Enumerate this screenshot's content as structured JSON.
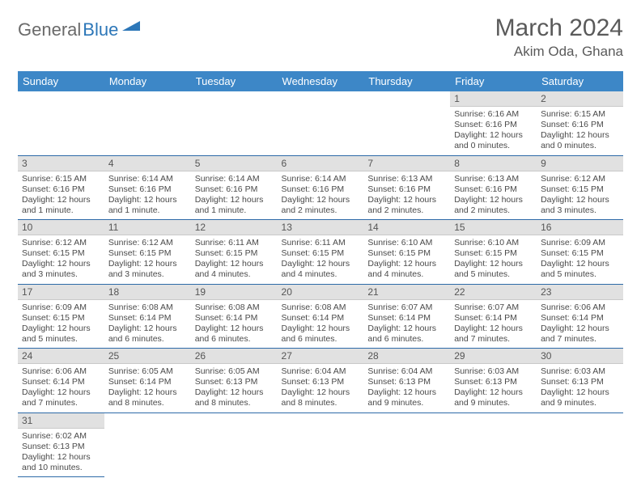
{
  "logo": {
    "text1": "General",
    "text2": "Blue"
  },
  "title": "March 2024",
  "location": "Akim Oda, Ghana",
  "colors": {
    "header_bg": "#3d87c7",
    "header_text": "#ffffff",
    "daynum_bg": "#e1e1e1",
    "cell_border": "#2d6aa8",
    "body_text": "#4a4a4a",
    "title_text": "#5a5a5a",
    "logo_gray": "#6a6a6a",
    "logo_blue": "#2d77b8"
  },
  "fonts": {
    "title_size": 30,
    "location_size": 17,
    "dow_size": 13,
    "daynum_size": 12,
    "content_size": 10.5
  },
  "dow": [
    "Sunday",
    "Monday",
    "Tuesday",
    "Wednesday",
    "Thursday",
    "Friday",
    "Saturday"
  ],
  "weeks": [
    [
      null,
      null,
      null,
      null,
      null,
      {
        "d": "1",
        "sr": "6:16 AM",
        "ss": "6:16 PM",
        "dl": "12 hours and 0 minutes."
      },
      {
        "d": "2",
        "sr": "6:15 AM",
        "ss": "6:16 PM",
        "dl": "12 hours and 0 minutes."
      }
    ],
    [
      {
        "d": "3",
        "sr": "6:15 AM",
        "ss": "6:16 PM",
        "dl": "12 hours and 1 minute."
      },
      {
        "d": "4",
        "sr": "6:14 AM",
        "ss": "6:16 PM",
        "dl": "12 hours and 1 minute."
      },
      {
        "d": "5",
        "sr": "6:14 AM",
        "ss": "6:16 PM",
        "dl": "12 hours and 1 minute."
      },
      {
        "d": "6",
        "sr": "6:14 AM",
        "ss": "6:16 PM",
        "dl": "12 hours and 2 minutes."
      },
      {
        "d": "7",
        "sr": "6:13 AM",
        "ss": "6:16 PM",
        "dl": "12 hours and 2 minutes."
      },
      {
        "d": "8",
        "sr": "6:13 AM",
        "ss": "6:16 PM",
        "dl": "12 hours and 2 minutes."
      },
      {
        "d": "9",
        "sr": "6:12 AM",
        "ss": "6:15 PM",
        "dl": "12 hours and 3 minutes."
      }
    ],
    [
      {
        "d": "10",
        "sr": "6:12 AM",
        "ss": "6:15 PM",
        "dl": "12 hours and 3 minutes."
      },
      {
        "d": "11",
        "sr": "6:12 AM",
        "ss": "6:15 PM",
        "dl": "12 hours and 3 minutes."
      },
      {
        "d": "12",
        "sr": "6:11 AM",
        "ss": "6:15 PM",
        "dl": "12 hours and 4 minutes."
      },
      {
        "d": "13",
        "sr": "6:11 AM",
        "ss": "6:15 PM",
        "dl": "12 hours and 4 minutes."
      },
      {
        "d": "14",
        "sr": "6:10 AM",
        "ss": "6:15 PM",
        "dl": "12 hours and 4 minutes."
      },
      {
        "d": "15",
        "sr": "6:10 AM",
        "ss": "6:15 PM",
        "dl": "12 hours and 5 minutes."
      },
      {
        "d": "16",
        "sr": "6:09 AM",
        "ss": "6:15 PM",
        "dl": "12 hours and 5 minutes."
      }
    ],
    [
      {
        "d": "17",
        "sr": "6:09 AM",
        "ss": "6:15 PM",
        "dl": "12 hours and 5 minutes."
      },
      {
        "d": "18",
        "sr": "6:08 AM",
        "ss": "6:14 PM",
        "dl": "12 hours and 6 minutes."
      },
      {
        "d": "19",
        "sr": "6:08 AM",
        "ss": "6:14 PM",
        "dl": "12 hours and 6 minutes."
      },
      {
        "d": "20",
        "sr": "6:08 AM",
        "ss": "6:14 PM",
        "dl": "12 hours and 6 minutes."
      },
      {
        "d": "21",
        "sr": "6:07 AM",
        "ss": "6:14 PM",
        "dl": "12 hours and 6 minutes."
      },
      {
        "d": "22",
        "sr": "6:07 AM",
        "ss": "6:14 PM",
        "dl": "12 hours and 7 minutes."
      },
      {
        "d": "23",
        "sr": "6:06 AM",
        "ss": "6:14 PM",
        "dl": "12 hours and 7 minutes."
      }
    ],
    [
      {
        "d": "24",
        "sr": "6:06 AM",
        "ss": "6:14 PM",
        "dl": "12 hours and 7 minutes."
      },
      {
        "d": "25",
        "sr": "6:05 AM",
        "ss": "6:14 PM",
        "dl": "12 hours and 8 minutes."
      },
      {
        "d": "26",
        "sr": "6:05 AM",
        "ss": "6:13 PM",
        "dl": "12 hours and 8 minutes."
      },
      {
        "d": "27",
        "sr": "6:04 AM",
        "ss": "6:13 PM",
        "dl": "12 hours and 8 minutes."
      },
      {
        "d": "28",
        "sr": "6:04 AM",
        "ss": "6:13 PM",
        "dl": "12 hours and 9 minutes."
      },
      {
        "d": "29",
        "sr": "6:03 AM",
        "ss": "6:13 PM",
        "dl": "12 hours and 9 minutes."
      },
      {
        "d": "30",
        "sr": "6:03 AM",
        "ss": "6:13 PM",
        "dl": "12 hours and 9 minutes."
      }
    ],
    [
      {
        "d": "31",
        "sr": "6:02 AM",
        "ss": "6:13 PM",
        "dl": "12 hours and 10 minutes."
      },
      null,
      null,
      null,
      null,
      null,
      null
    ]
  ],
  "labels": {
    "sunrise": "Sunrise: ",
    "sunset": "Sunset: ",
    "daylight": "Daylight: "
  }
}
